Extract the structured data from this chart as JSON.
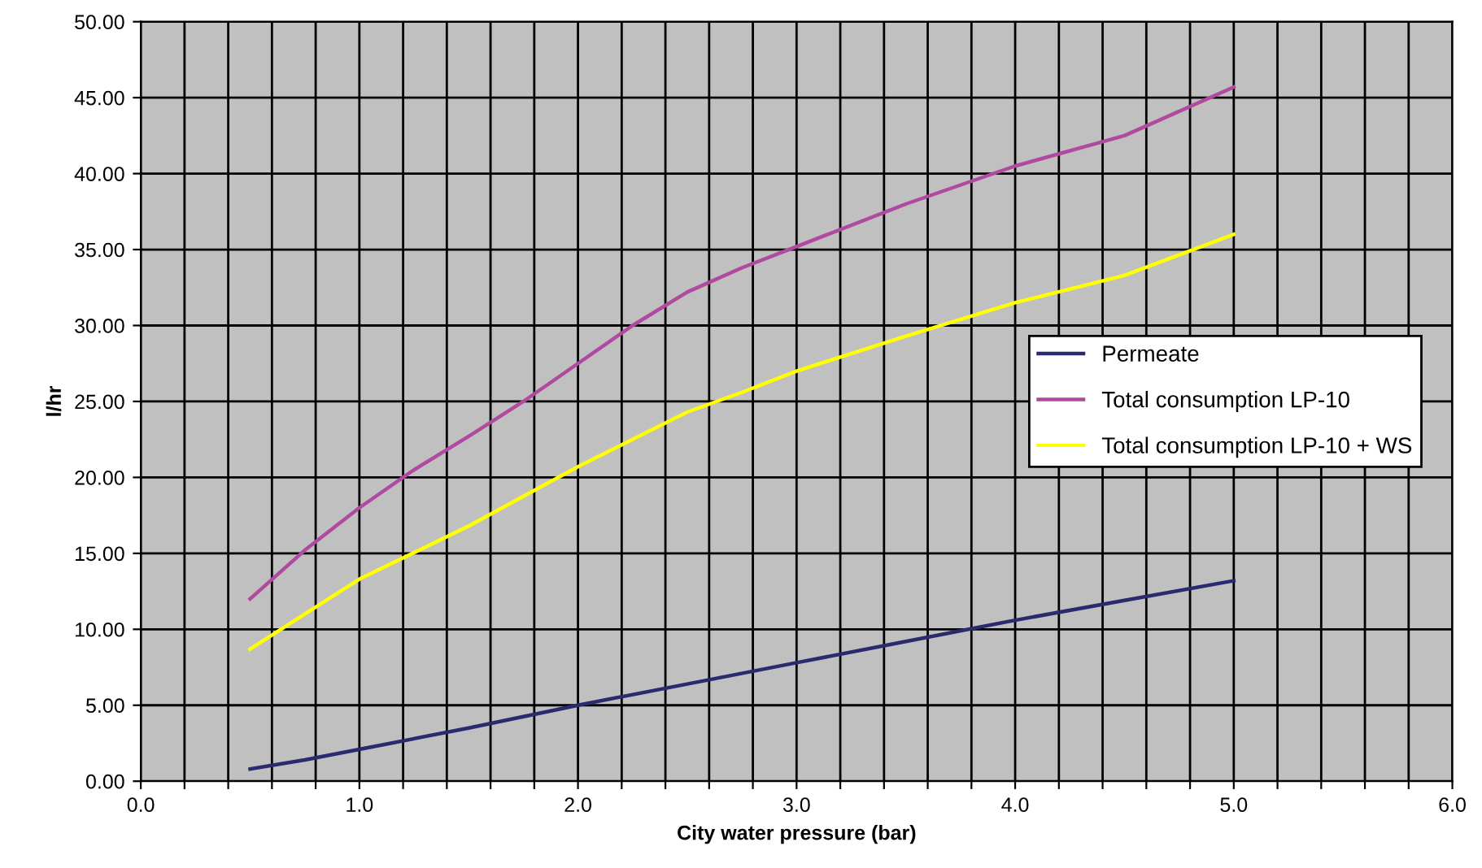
{
  "chart_data": {
    "type": "line",
    "xlabel": "City water pressure (bar)",
    "ylabel": "l/hr",
    "xlim": [
      0,
      6
    ],
    "ylim": [
      0,
      50
    ],
    "xticks": [
      {
        "value": 0,
        "label": "0.0"
      },
      {
        "value": 0.2,
        "label": null
      },
      {
        "value": 0.4,
        "label": null
      },
      {
        "value": 0.6,
        "label": null
      },
      {
        "value": 0.8,
        "label": null
      },
      {
        "value": 1,
        "label": "1.0"
      },
      {
        "value": 1.2,
        "label": null
      },
      {
        "value": 1.4,
        "label": null
      },
      {
        "value": 1.6,
        "label": null
      },
      {
        "value": 1.8,
        "label": null
      },
      {
        "value": 2,
        "label": "2.0"
      },
      {
        "value": 2.2,
        "label": null
      },
      {
        "value": 2.4,
        "label": null
      },
      {
        "value": 2.6,
        "label": null
      },
      {
        "value": 2.8,
        "label": null
      },
      {
        "value": 3,
        "label": "3.0"
      },
      {
        "value": 3.2,
        "label": null
      },
      {
        "value": 3.4,
        "label": null
      },
      {
        "value": 3.6,
        "label": null
      },
      {
        "value": 3.8,
        "label": null
      },
      {
        "value": 4,
        "label": "4.0"
      },
      {
        "value": 4.2,
        "label": null
      },
      {
        "value": 4.4,
        "label": null
      },
      {
        "value": 4.6,
        "label": null
      },
      {
        "value": 4.8,
        "label": null
      },
      {
        "value": 5,
        "label": "5.0"
      },
      {
        "value": 5.2,
        "label": null
      },
      {
        "value": 5.4,
        "label": null
      },
      {
        "value": 5.6,
        "label": null
      },
      {
        "value": 5.8,
        "label": null
      },
      {
        "value": 6,
        "label": "6.0"
      }
    ],
    "yticks": [
      {
        "value": 0,
        "label": "0.00"
      },
      {
        "value": 5,
        "label": "5.00"
      },
      {
        "value": 10,
        "label": "10.00"
      },
      {
        "value": 15,
        "label": "15.00"
      },
      {
        "value": 20,
        "label": "20.00"
      },
      {
        "value": 25,
        "label": "25.00"
      },
      {
        "value": 30,
        "label": "30.00"
      },
      {
        "value": 35,
        "label": "35.00"
      },
      {
        "value": 40,
        "label": "40.00"
      },
      {
        "value": 45,
        "label": "45.00"
      },
      {
        "value": 50,
        "label": "50.00"
      }
    ],
    "grid": true,
    "legend": "right",
    "marker": "none",
    "line_style": "solid",
    "series": [
      {
        "name": "Permeate",
        "color": "#2b2a6e",
        "x": [
          0.5,
          0.75,
          1.0,
          1.5,
          2.0,
          2.5,
          3.0,
          3.5,
          4.0,
          4.5,
          5.0
        ],
        "values": [
          0.8,
          1.4,
          2.1,
          3.5,
          5.0,
          6.4,
          7.8,
          9.2,
          10.6,
          11.9,
          13.2
        ]
      },
      {
        "name": "Total consumption LP-10",
        "color": "#b04aa0",
        "x": [
          0.5,
          0.75,
          1.0,
          1.25,
          1.5,
          1.75,
          2.0,
          2.25,
          2.5,
          2.75,
          3.0,
          3.5,
          4.0,
          4.5,
          5.0
        ],
        "values": [
          12.0,
          15.2,
          18.0,
          20.5,
          22.7,
          25.0,
          27.5,
          30.0,
          32.2,
          33.8,
          35.2,
          38.0,
          40.5,
          42.5,
          45.7
        ]
      },
      {
        "name": "Total consumption LP-10 + WS",
        "color": "#ffff00",
        "x": [
          0.5,
          0.75,
          1.0,
          1.5,
          2.0,
          2.5,
          2.75,
          3.0,
          3.5,
          4.0,
          4.5,
          5.0
        ],
        "values": [
          8.7,
          11.0,
          13.3,
          16.8,
          20.7,
          24.3,
          25.6,
          27.0,
          29.3,
          31.5,
          33.3,
          36.0
        ]
      }
    ]
  }
}
